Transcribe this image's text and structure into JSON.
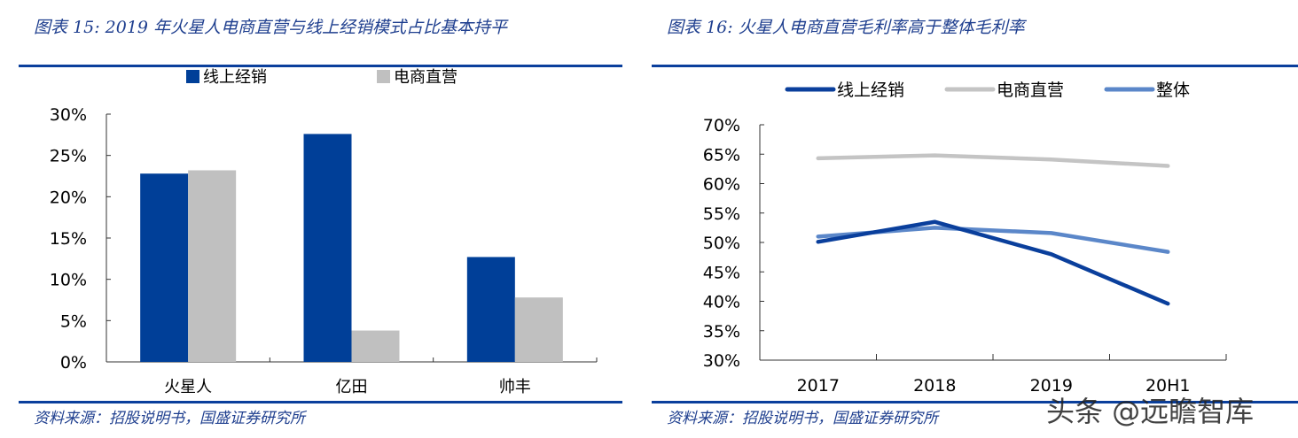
{
  "chart_data": [
    {
      "type": "bar",
      "title": "图表 15: 2019 年火星人电商直营与线上经销模式占比基本持平",
      "categories": [
        "火星人",
        "亿田",
        "帅丰"
      ],
      "series": [
        {
          "name": "线上经销",
          "values": [
            22.8,
            27.6,
            12.7
          ],
          "color": "#003f98"
        },
        {
          "name": "电商直营",
          "values": [
            23.2,
            3.8,
            7.8
          ],
          "color": "#c0c0c0"
        }
      ],
      "yticks": [
        "0%",
        "5%",
        "10%",
        "15%",
        "20%",
        "25%",
        "30%"
      ],
      "ylim": [
        0,
        30
      ],
      "legend": "top",
      "source": "资料来源：招股说明书，国盛证券研究所"
    },
    {
      "type": "line",
      "title": "图表 16: 火星人电商直营毛利率高于整体毛利率",
      "categories": [
        "2017",
        "2018",
        "2019",
        "20H1"
      ],
      "series": [
        {
          "name": "线上经销",
          "values": [
            50.1,
            53.5,
            48.0,
            39.6
          ],
          "color": "#0a3f9c"
        },
        {
          "name": "电商直营",
          "values": [
            64.3,
            64.8,
            64.1,
            63.0
          ],
          "color": "#c4c4c4"
        },
        {
          "name": "整体",
          "values": [
            51.0,
            52.5,
            51.6,
            48.4
          ],
          "color": "#5b87c9"
        }
      ],
      "yticks": [
        "30%",
        "35%",
        "40%",
        "45%",
        "50%",
        "55%",
        "60%",
        "65%",
        "70%"
      ],
      "ylim": [
        30,
        70
      ],
      "legend": "top",
      "source": "资料来源：招股说明书，国盛证券研究所"
    }
  ],
  "watermark": "头条 @远瞻智库"
}
